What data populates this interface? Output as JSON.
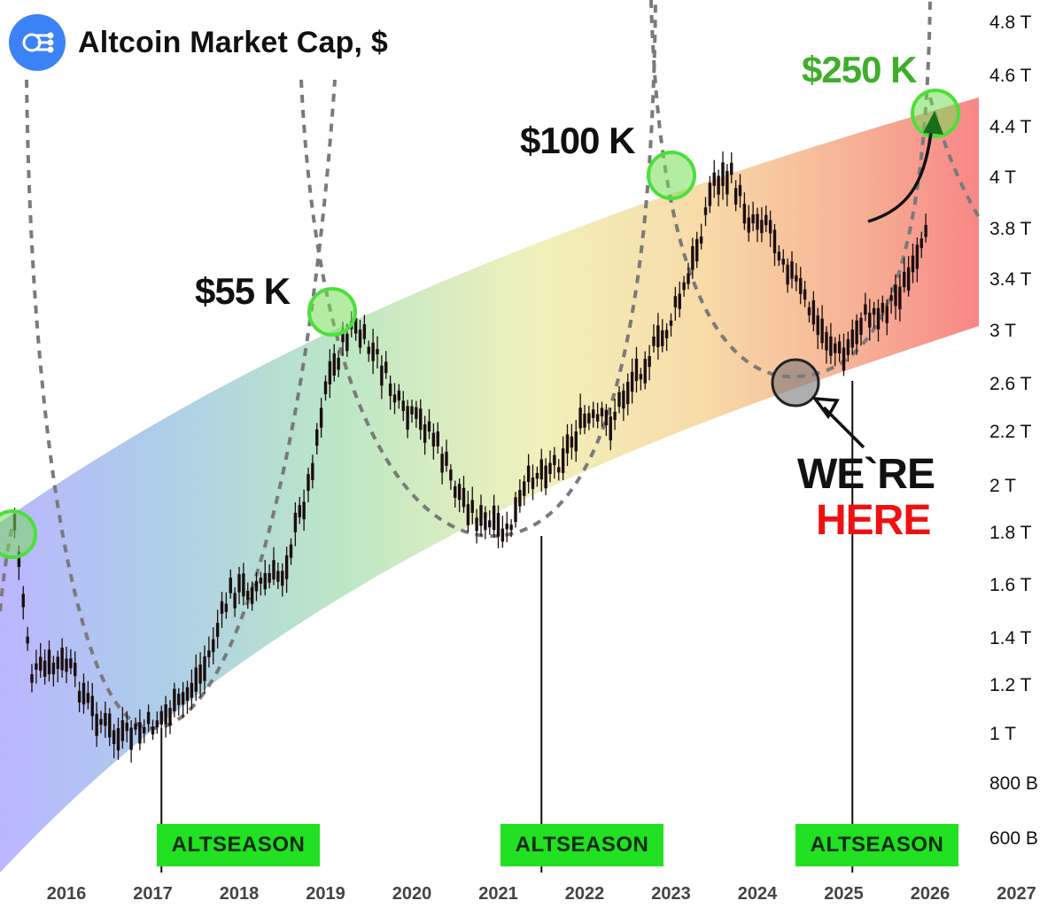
{
  "header": {
    "title": "Altcoin Market Cap, $",
    "logo_icon": "network-logo-icon"
  },
  "chart_data": {
    "type": "candlestick",
    "title": "Altcoin Market Cap, $",
    "x_ticks": [
      "2016",
      "2017",
      "2018",
      "2019",
      "2020",
      "2021",
      "2022",
      "2023",
      "2024",
      "2025",
      "2026",
      "2027"
    ],
    "y_ticks": [
      "4.8 T",
      "4.6 T",
      "4.4 T",
      "4 T",
      "3.8 T",
      "3.4 T",
      "3 T",
      "2.6 T",
      "2.2 T",
      "2 T",
      "1.8 T",
      "1.6 T",
      "1.4 T",
      "1.2 T",
      "1 T",
      "800 B",
      "600 B"
    ],
    "series": [
      {
        "values": [
          [
            "2015.4",
            1.85
          ],
          [
            "2015.6",
            1.25
          ],
          [
            "2016.0",
            1.3
          ],
          [
            "2016.3",
            1.1
          ],
          [
            "2016.6",
            0.98
          ],
          [
            "2016.9",
            1.02
          ],
          [
            "2017.3",
            1.12
          ],
          [
            "2017.6",
            1.28
          ],
          [
            "2017.9",
            1.58
          ],
          [
            "2018.2",
            1.6
          ],
          [
            "2018.5",
            1.65
          ],
          [
            "2018.8",
            2.0
          ],
          [
            "2019.0",
            2.6
          ],
          [
            "2019.3",
            3.05
          ],
          [
            "2019.6",
            2.8
          ],
          [
            "2019.9",
            2.35
          ],
          [
            "2020.2",
            2.25
          ],
          [
            "2020.5",
            2.0
          ],
          [
            "2020.8",
            1.85
          ],
          [
            "2021.1",
            1.8
          ],
          [
            "2021.4",
            2.05
          ],
          [
            "2021.7",
            2.1
          ],
          [
            "2022.0",
            2.3
          ],
          [
            "2022.3",
            2.3
          ],
          [
            "2022.6",
            2.7
          ],
          [
            "2022.9",
            2.95
          ],
          [
            "2023.2",
            3.4
          ],
          [
            "2023.5",
            4.0
          ],
          [
            "2023.7",
            4.0
          ],
          [
            "2023.9",
            3.85
          ],
          [
            "2024.1",
            3.85
          ],
          [
            "2024.4",
            3.45
          ],
          [
            "2024.7",
            3.05
          ],
          [
            "2025.0",
            2.8
          ],
          [
            "2025.2",
            3.1
          ],
          [
            "2025.5",
            3.2
          ],
          [
            "2025.8",
            3.45
          ],
          [
            "2026.0",
            3.8
          ]
        ]
      }
    ],
    "peaks": [
      {
        "label": "$55 K",
        "x": "2019.4",
        "y": 3.15
      },
      {
        "label": "$100 K",
        "x": "2023.6",
        "y": 4.0
      },
      {
        "label": "$250 K",
        "x": "2026.8",
        "y": 4.45,
        "projected": true
      }
    ],
    "bottoms": [
      {
        "x": "2025.0",
        "y": 2.7,
        "label_top": "WE`RE",
        "label_bottom": "HERE"
      }
    ],
    "markers": [
      {
        "label": "ALTSEASON",
        "x": "2017.1"
      },
      {
        "label": "ALTSEASON",
        "x": "2021.5"
      },
      {
        "label": "ALTSEASON",
        "x": "2025.1"
      }
    ],
    "colors": {
      "peak_circle": "#4be03a",
      "bottom_circle": "#888888",
      "altseason": "#22e022",
      "here_text": "#ee1111",
      "projection_label": "#3fae2a"
    }
  }
}
